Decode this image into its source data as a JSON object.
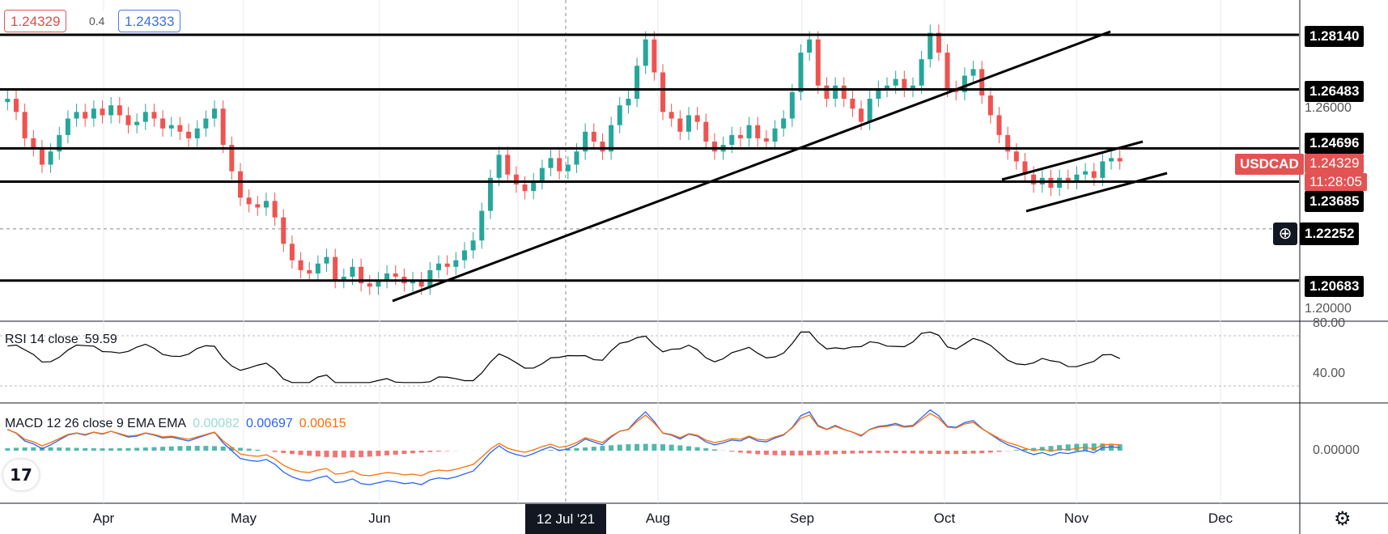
{
  "quotes": {
    "bid": "1.24329",
    "spread": "0.4",
    "ask": "1.24333"
  },
  "symbol": "USDCAD",
  "last_price": "1.24329",
  "countdown": "11:28:05",
  "crosshair": {
    "date": "12 Jul '21",
    "price": "1.22252"
  },
  "rsi": {
    "label": "RSI 14 close",
    "value": "59.59"
  },
  "macd": {
    "label": "MACD 12 26 close 9 EMA EMA",
    "hist": "0.00082",
    "macd": "0.00697",
    "signal": "0.00615"
  },
  "colors": {
    "up": "#26a69a",
    "down": "#ef5350",
    "macd": "#2962ff",
    "signal": "#ff6d00",
    "hist_up": "#26a69a",
    "hist_down": "#ef5350"
  },
  "icons": [
    "tradingview-logo-icon",
    "gear-icon",
    "plus-circle-icon"
  ],
  "chart_data": {
    "type": "candlestick",
    "symbol": "USDCAD",
    "price_range": [
      1.195,
      1.29
    ],
    "x_axis_labels": [
      "Apr",
      "May",
      "Jun",
      "Jul",
      "Aug",
      "Sep",
      "Oct",
      "Nov",
      "Dec"
    ],
    "y_axis_labels": [
      "1.26000",
      "1.20000"
    ],
    "horizontal_levels": [
      1.2814,
      1.26483,
      1.24696,
      1.23685,
      1.20683
    ],
    "dashed_level": 1.22252,
    "trendlines": [
      {
        "from": [
          "Jun 1",
          1.2015
        ],
        "to": [
          "Nov 5",
          1.283
        ]
      },
      {
        "from": [
          "Oct 15",
          1.2385
        ],
        "to": [
          "Nov 15",
          1.2475
        ]
      },
      {
        "from": [
          "Oct 20",
          1.2335
        ],
        "to": [
          "Nov 18",
          1.2415
        ]
      }
    ],
    "closes": [
      1.262,
      1.258,
      1.25,
      1.247,
      1.242,
      1.246,
      1.251,
      1.256,
      1.258,
      1.256,
      1.259,
      1.257,
      1.26,
      1.257,
      1.254,
      1.255,
      1.258,
      1.256,
      1.253,
      1.254,
      1.252,
      1.25,
      1.253,
      1.256,
      1.259,
      1.248,
      1.24,
      1.232,
      1.23,
      1.229,
      1.231,
      1.226,
      1.218,
      1.213,
      1.21,
      1.209,
      1.212,
      1.214,
      1.207,
      1.208,
      1.211,
      1.206,
      1.205,
      1.207,
      1.209,
      1.208,
      1.206,
      1.207,
      1.205,
      1.21,
      1.212,
      1.211,
      1.213,
      1.216,
      1.219,
      1.228,
      1.238,
      1.245,
      1.239,
      1.236,
      1.234,
      1.237,
      1.241,
      1.244,
      1.24,
      1.242,
      1.246,
      1.252,
      1.249,
      1.246,
      1.254,
      1.26,
      1.262,
      1.272,
      1.28,
      1.27,
      1.258,
      1.256,
      1.252,
      1.257,
      1.255,
      1.249,
      1.246,
      1.248,
      1.251,
      1.25,
      1.254,
      1.25,
      1.249,
      1.253,
      1.256,
      1.264,
      1.276,
      1.28,
      1.266,
      1.262,
      1.266,
      1.262,
      1.259,
      1.255,
      1.262,
      1.265,
      1.266,
      1.268,
      1.265,
      1.266,
      1.274,
      1.282,
      1.276,
      1.265,
      1.264,
      1.269,
      1.271,
      1.263,
      1.257,
      1.251,
      1.246,
      1.243,
      1.239,
      1.236,
      1.238,
      1.235,
      1.238,
      1.237,
      1.239,
      1.24,
      1.238,
      1.243,
      1.244,
      1.243
    ]
  },
  "rsi_data": {
    "levels": [
      80.0,
      40.0
    ],
    "axis_labels": [
      "80.00",
      "40.00"
    ],
    "last": 59.59
  },
  "macd_data": {
    "axis_labels": [
      "0.00000"
    ]
  }
}
